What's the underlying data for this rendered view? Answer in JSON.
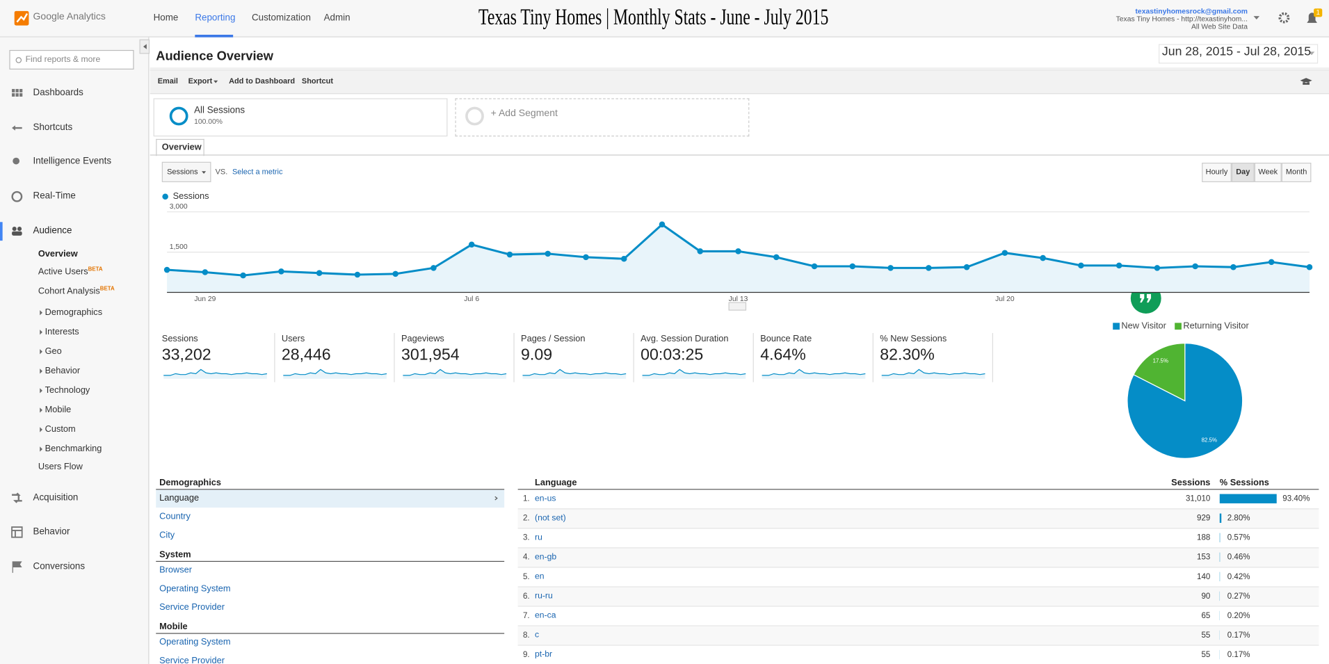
{
  "header": {
    "product": "Google Analytics",
    "nav": [
      "Home",
      "Reporting",
      "Customization",
      "Admin"
    ],
    "title": "Texas Tiny Homes | Monthly Stats - June - July 2015",
    "account_email": "texastinyhomesrock@gmail.com",
    "account_property": "Texas Tiny Homes - http://texastinyhom...",
    "account_view": "All Web Site Data",
    "notifications": "1"
  },
  "sidebar": {
    "search_placeholder": "Find reports & more",
    "sections_top": [
      "Dashboards",
      "Shortcuts",
      "Intelligence Events",
      "Real-Time",
      "Audience"
    ],
    "audience_items": [
      {
        "label": "Overview"
      },
      {
        "label": "Active Users",
        "badge": "BETA"
      },
      {
        "label": "Cohort Analysis",
        "badge": "BETA"
      },
      {
        "label": "Demographics"
      },
      {
        "label": "Interests"
      },
      {
        "label": "Geo"
      },
      {
        "label": "Behavior"
      },
      {
        "label": "Technology"
      },
      {
        "label": "Mobile"
      },
      {
        "label": "Custom"
      },
      {
        "label": "Benchmarking"
      },
      {
        "label": "Users Flow"
      }
    ],
    "sections_bottom": [
      "Acquisition",
      "Behavior",
      "Conversions"
    ]
  },
  "report": {
    "title": "Audience Overview",
    "date_range": "Jun 28, 2015 - Jul 28, 2015",
    "actions": [
      "Email",
      "Export",
      "Add to Dashboard",
      "Shortcut"
    ],
    "segment": {
      "name": "All Sessions",
      "share": "100.00%"
    },
    "add_segment": "+ Add Segment",
    "tab": "Overview",
    "metric": "Sessions",
    "vs": "VS.",
    "select_metric": "Select a metric",
    "granularity": [
      "Hourly",
      "Day",
      "Week",
      "Month"
    ]
  },
  "metrics": [
    {
      "label": "Sessions",
      "value": "33,202"
    },
    {
      "label": "Users",
      "value": "28,446"
    },
    {
      "label": "Pageviews",
      "value": "301,954"
    },
    {
      "label": "Pages / Session",
      "value": "9.09"
    },
    {
      "label": "Avg. Session Duration",
      "value": "00:03:25"
    },
    {
      "label": "Bounce Rate",
      "value": "4.64%"
    },
    {
      "label": "% New Sessions",
      "value": "82.30%"
    }
  ],
  "demographics_nav": {
    "groups": [
      {
        "heading": "Demographics",
        "links": [
          "Language",
          "Country",
          "City"
        ]
      },
      {
        "heading": "System",
        "links": [
          "Browser",
          "Operating System",
          "Service Provider"
        ]
      },
      {
        "heading": "Mobile",
        "links": [
          "Operating System",
          "Service Provider"
        ]
      }
    ]
  },
  "language_table": {
    "columns": [
      "Language",
      "Sessions",
      "% Sessions"
    ],
    "rows": [
      {
        "rank": "1.",
        "language": "en-us",
        "sessions": "31,010",
        "pct": 93.4,
        "pct_label": "93.40%"
      },
      {
        "rank": "2.",
        "language": "(not set)",
        "sessions": "929",
        "pct": 2.8,
        "pct_label": "2.80%"
      },
      {
        "rank": "3.",
        "language": "ru",
        "sessions": "188",
        "pct": 0.57,
        "pct_label": "0.57%"
      },
      {
        "rank": "4.",
        "language": "en-gb",
        "sessions": "153",
        "pct": 0.46,
        "pct_label": "0.46%"
      },
      {
        "rank": "5.",
        "language": "en",
        "sessions": "140",
        "pct": 0.42,
        "pct_label": "0.42%"
      },
      {
        "rank": "6.",
        "language": "ru-ru",
        "sessions": "90",
        "pct": 0.27,
        "pct_label": "0.27%"
      },
      {
        "rank": "7.",
        "language": "en-ca",
        "sessions": "65",
        "pct": 0.2,
        "pct_label": "0.20%"
      },
      {
        "rank": "8.",
        "language": "c",
        "sessions": "55",
        "pct": 0.17,
        "pct_label": "0.17%"
      },
      {
        "rank": "9.",
        "language": "pt-br",
        "sessions": "55",
        "pct": 0.17,
        "pct_label": "0.17%"
      }
    ]
  },
  "chart_data": [
    {
      "type": "line",
      "categories": [
        null,
        "Jun 29",
        null,
        null,
        null,
        null,
        null,
        null,
        "Jul 6",
        null,
        null,
        null,
        null,
        null,
        null,
        "Jul 13",
        null,
        null,
        null,
        null,
        null,
        null,
        "Jul 20",
        null,
        null,
        null,
        null,
        null,
        null,
        null,
        null
      ],
      "series": [
        {
          "name": "Sessions",
          "color": "#058dc7",
          "values": [
            840,
            750,
            630,
            780,
            720,
            660,
            690,
            910,
            1780,
            1410,
            1440,
            1310,
            1250,
            2530,
            1530,
            1530,
            1310,
            970,
            970,
            910,
            910,
            940,
            1470,
            1280,
            1000,
            1000,
            910,
            970,
            940,
            1130,
            940
          ]
        }
      ],
      "ylim": [
        0,
        3000
      ],
      "yticks": [
        {
          "value": 1500,
          "label": "1,500"
        },
        {
          "value": 3000,
          "label": "3,000"
        }
      ],
      "grid": true
    },
    {
      "type": "pie",
      "categories": [
        "New Visitor",
        "Returning Visitor"
      ],
      "values": [
        82.5,
        17.5
      ],
      "value_labels": [
        "82.5%",
        "17.5%"
      ],
      "colors": [
        "#058dc7",
        "#50b432"
      ]
    }
  ]
}
